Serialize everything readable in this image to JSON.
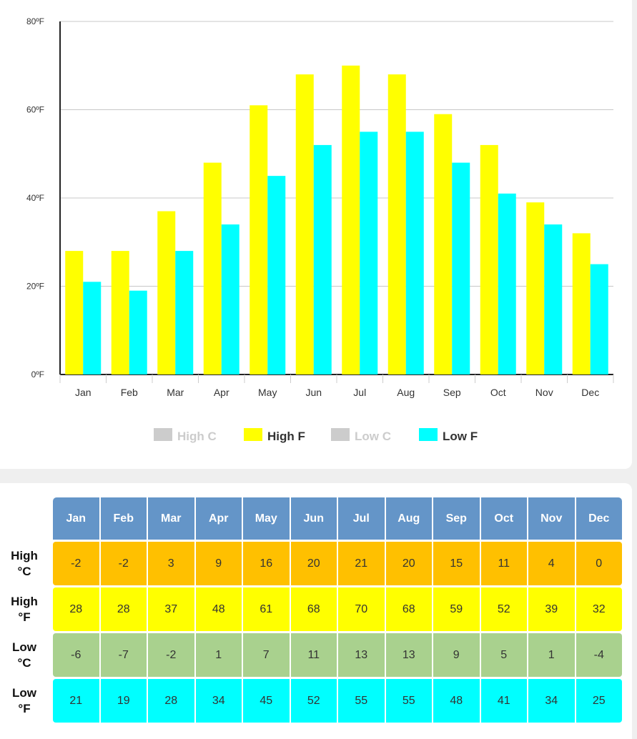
{
  "chart_data": {
    "type": "bar",
    "categories": [
      "Jan",
      "Feb",
      "Mar",
      "Apr",
      "May",
      "Jun",
      "Jul",
      "Aug",
      "Sep",
      "Oct",
      "Nov",
      "Dec"
    ],
    "series": [
      {
        "name": "High C",
        "values": [
          -2,
          -2,
          3,
          9,
          16,
          20,
          21,
          20,
          15,
          11,
          4,
          0
        ],
        "visible": false,
        "color": "#c8c8c8"
      },
      {
        "name": "High F",
        "values": [
          28,
          28,
          37,
          48,
          61,
          68,
          70,
          68,
          59,
          52,
          39,
          32
        ],
        "visible": true,
        "color": "#ffff00"
      },
      {
        "name": "Low C",
        "values": [
          -6,
          -7,
          -2,
          1,
          7,
          11,
          13,
          13,
          9,
          5,
          1,
          -4
        ],
        "visible": false,
        "color": "#c8c8c8"
      },
      {
        "name": "Low F",
        "values": [
          21,
          19,
          28,
          34,
          45,
          52,
          55,
          55,
          48,
          41,
          34,
          25
        ],
        "visible": true,
        "color": "#00ffff"
      }
    ],
    "ylim": [
      0,
      80
    ],
    "yticks": [
      0,
      20,
      40,
      60,
      80
    ],
    "ytick_labels": [
      "0ºF",
      "20ºF",
      "40ºF",
      "60ºF",
      "80ºF"
    ],
    "grid": true,
    "legend_position": "bottom-center"
  },
  "table": {
    "months": [
      "Jan",
      "Feb",
      "Mar",
      "Apr",
      "May",
      "Jun",
      "Jul",
      "Aug",
      "Sep",
      "Oct",
      "Nov",
      "Dec"
    ],
    "header_color": "#6495c8",
    "rows": [
      {
        "label_line1": "High",
        "label_line2": "°C",
        "color": "#ffc000",
        "values": [
          "-2",
          "-2",
          "3",
          "9",
          "16",
          "20",
          "21",
          "20",
          "15",
          "11",
          "4",
          "0"
        ]
      },
      {
        "label_line1": "High",
        "label_line2": "°F",
        "color": "#ffff00",
        "values": [
          "28",
          "28",
          "37",
          "48",
          "61",
          "68",
          "70",
          "68",
          "59",
          "52",
          "39",
          "32"
        ]
      },
      {
        "label_line1": "Low",
        "label_line2": "°C",
        "color": "#a9d18e",
        "values": [
          "-6",
          "-7",
          "-2",
          "1",
          "7",
          "11",
          "13",
          "13",
          "9",
          "5",
          "1",
          "-4"
        ]
      },
      {
        "label_line1": "Low",
        "label_line2": "°F",
        "color": "#00ffff",
        "values": [
          "21",
          "19",
          "28",
          "34",
          "45",
          "52",
          "55",
          "55",
          "48",
          "41",
          "34",
          "25"
        ]
      }
    ]
  }
}
